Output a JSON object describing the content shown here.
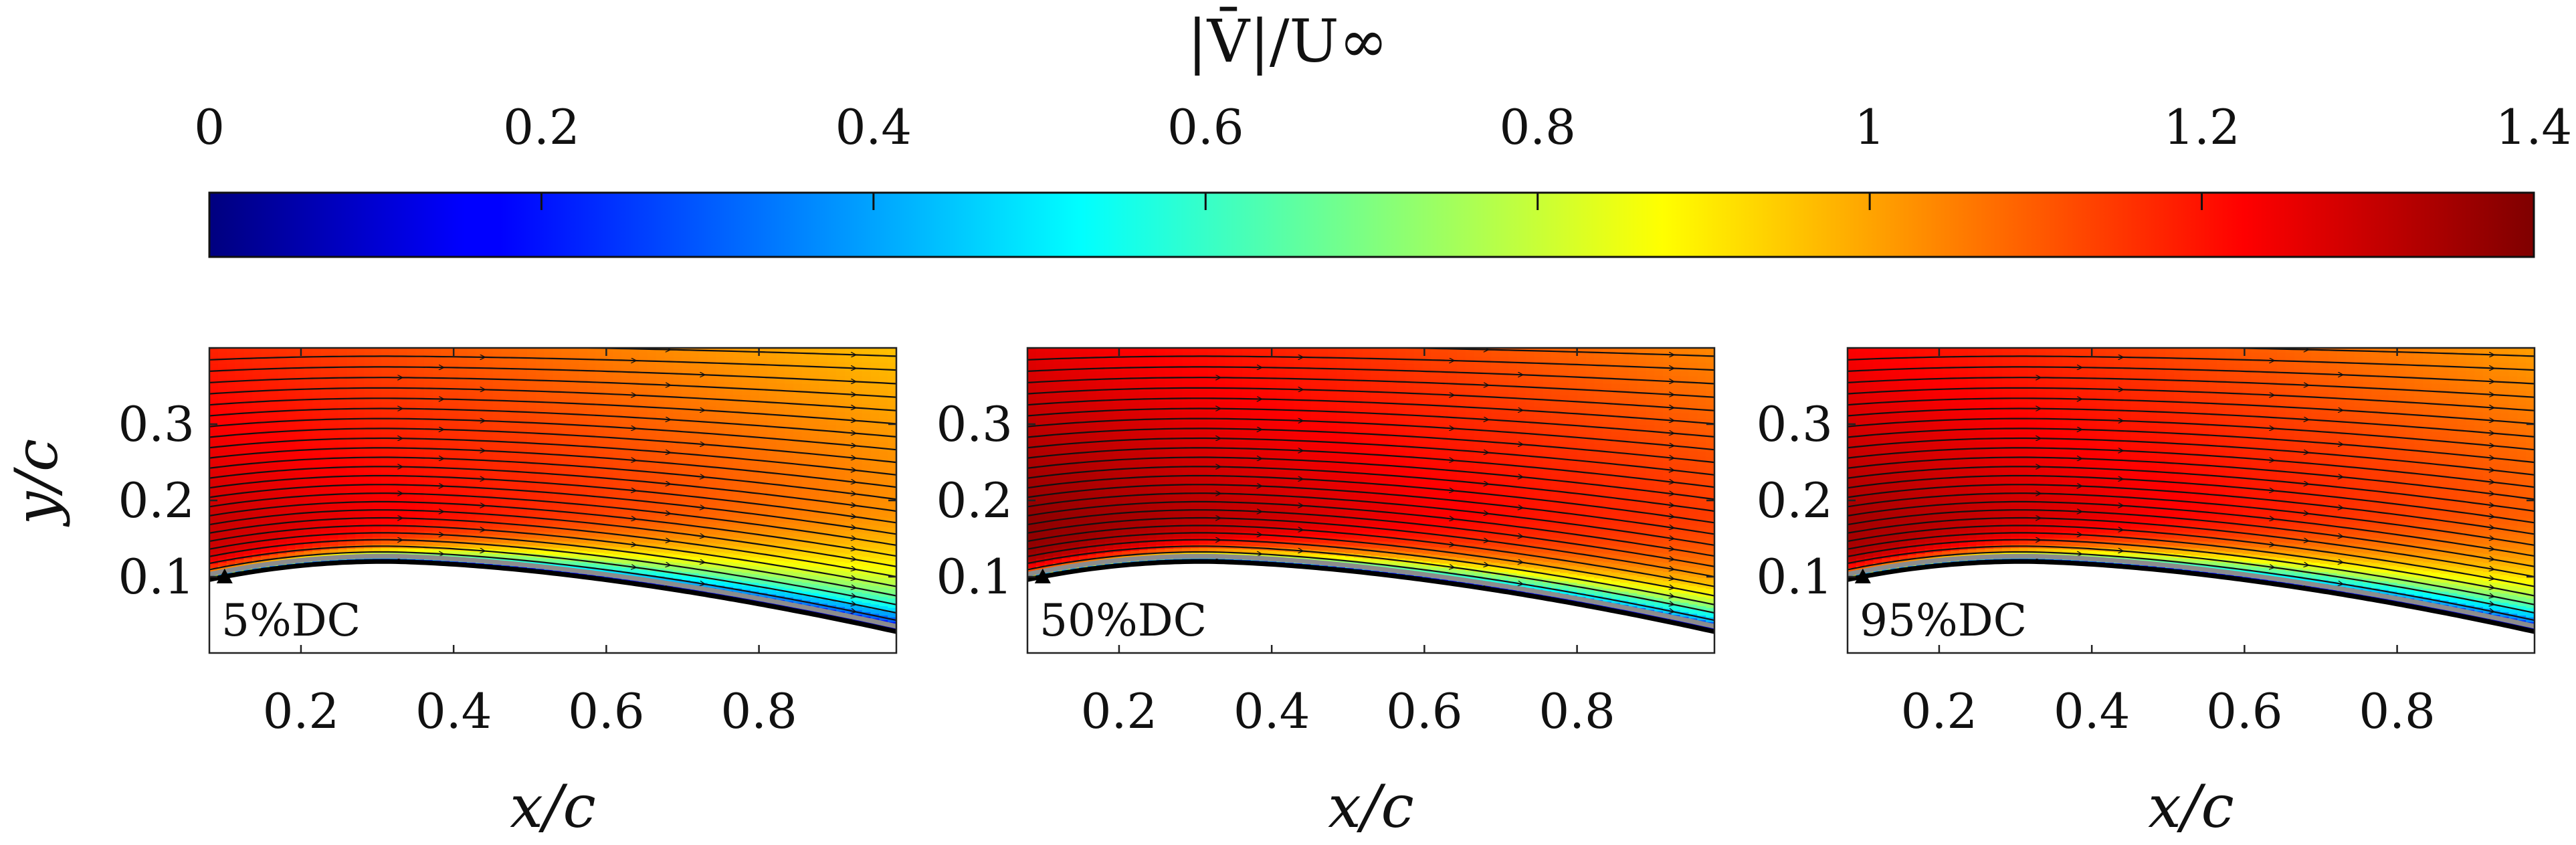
{
  "chart_data": [
    {
      "type": "heatmap",
      "panel_label": "5%DC",
      "title": "",
      "xlabel": "x/c",
      "ylabel": "y/c",
      "xlim": [
        0.08,
        0.98
      ],
      "ylim": [
        0.0,
        0.4
      ],
      "x_ticks": [
        0.2,
        0.4,
        0.6,
        0.8
      ],
      "y_ticks": [
        0.1,
        0.2,
        0.3
      ],
      "x_tick_labels": [
        "0.2",
        "0.4",
        "0.6",
        "0.8"
      ],
      "y_tick_labels": [
        "0.1",
        "0.2",
        "0.3"
      ],
      "field": "velocity magnitude with streamlines over airfoil upper surface",
      "max_value": 1.3,
      "separation_strength": 0.85
    },
    {
      "type": "heatmap",
      "panel_label": "50%DC",
      "title": "",
      "xlabel": "x/c",
      "ylabel": "",
      "xlim": [
        0.08,
        0.98
      ],
      "ylim": [
        0.0,
        0.4
      ],
      "x_ticks": [
        0.2,
        0.4,
        0.6,
        0.8
      ],
      "y_ticks": [
        0.1,
        0.2,
        0.3
      ],
      "x_tick_labels": [
        "0.2",
        "0.4",
        "0.6",
        "0.8"
      ],
      "y_tick_labels": [
        "0.1",
        "0.2",
        "0.3"
      ],
      "field": "velocity magnitude with streamlines over airfoil upper surface",
      "max_value": 1.38,
      "separation_strength": 0.55
    },
    {
      "type": "heatmap",
      "panel_label": "95%DC",
      "title": "",
      "xlabel": "x/c",
      "ylabel": "",
      "xlim": [
        0.08,
        0.98
      ],
      "ylim": [
        0.0,
        0.4
      ],
      "x_ticks": [
        0.2,
        0.4,
        0.6,
        0.8
      ],
      "y_ticks": [
        0.1,
        0.2,
        0.3
      ],
      "x_tick_labels": [
        "0.2",
        "0.4",
        "0.6",
        "0.8"
      ],
      "y_tick_labels": [
        "0.1",
        "0.2",
        "0.3"
      ],
      "field": "velocity magnitude with streamlines over airfoil upper surface",
      "max_value": 1.35,
      "separation_strength": 0.7
    }
  ],
  "colorbar": {
    "title": "|V̄|/U∞",
    "range": [
      0,
      1.4
    ],
    "ticks": [
      0,
      0.2,
      0.4,
      0.6,
      0.8,
      1,
      1.2,
      1.4
    ],
    "tick_labels": [
      "0",
      "0.2",
      "0.4",
      "0.6",
      "0.8",
      "1",
      "1.2",
      "1.4"
    ],
    "colormap": "jet"
  }
}
